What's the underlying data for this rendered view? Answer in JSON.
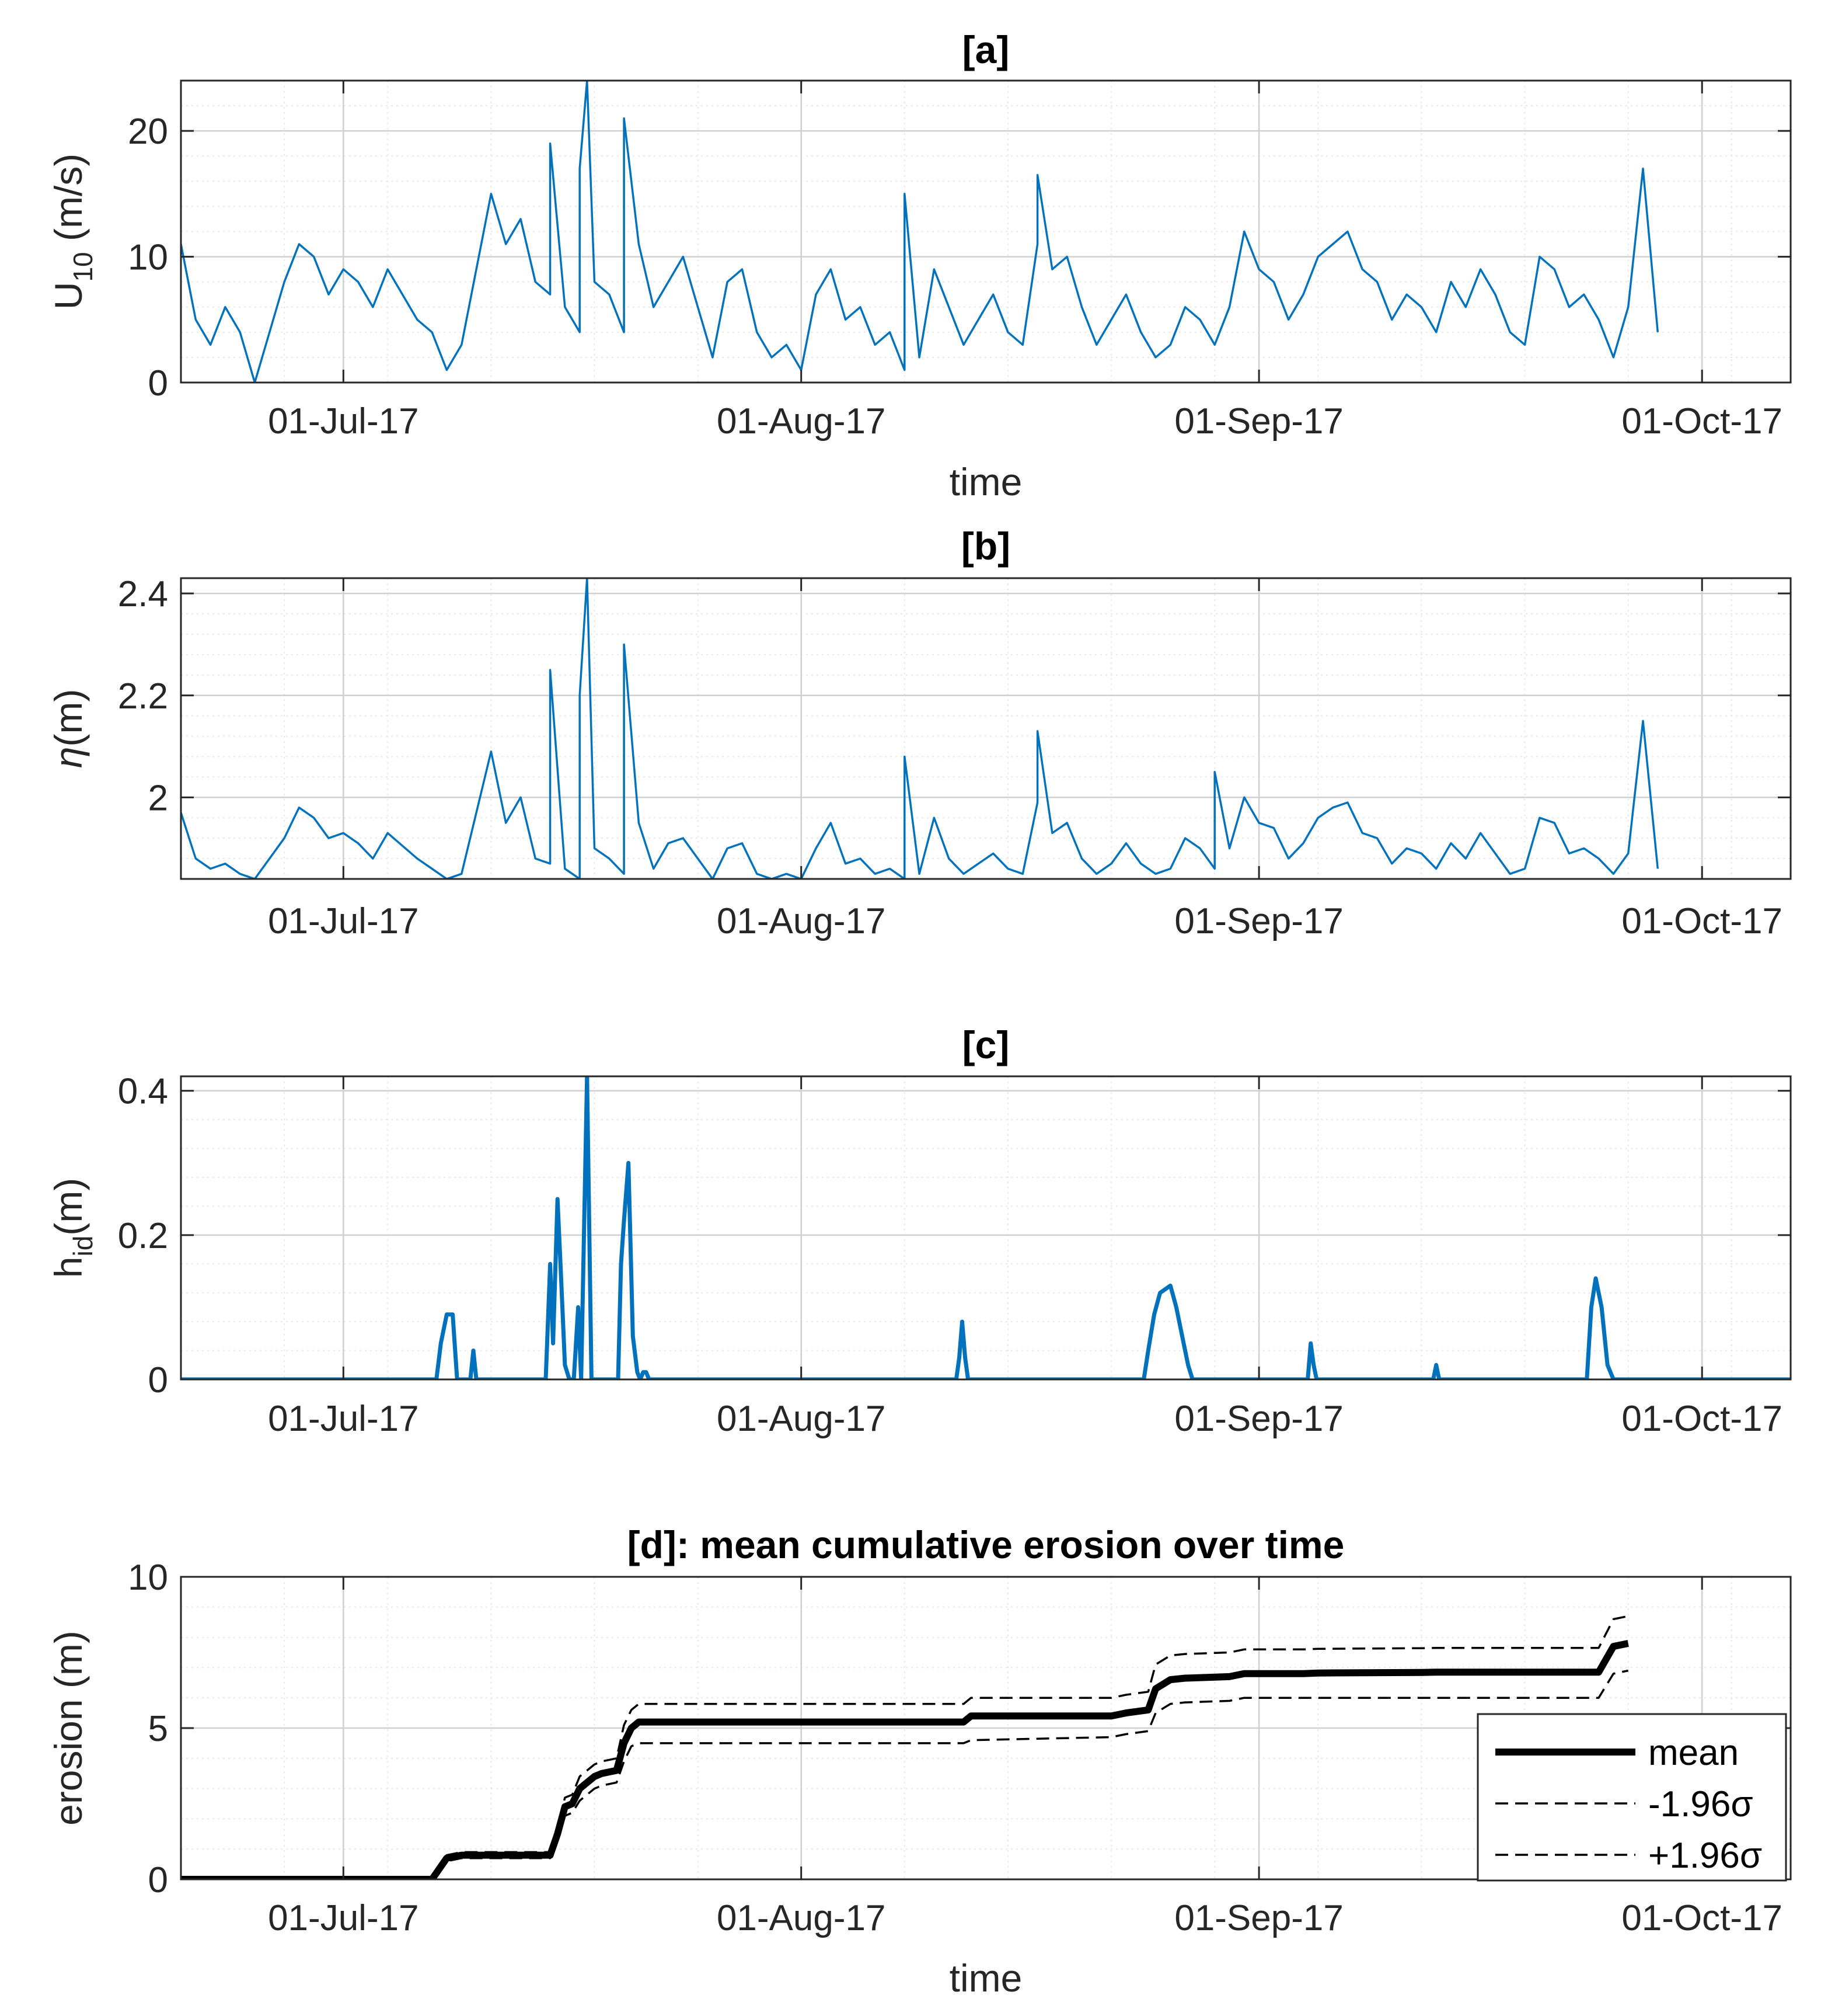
{
  "colors": {
    "series": "#0072bd",
    "axis": "#262626",
    "grid_major": "#d0d0d0",
    "grid_minor": "#e8e8e8",
    "band": "#000000"
  },
  "chart_data": [
    {
      "id": "a",
      "type": "line",
      "title": "[a]",
      "xlabel": "time",
      "ylabel_main": "U",
      "ylabel_sub": "10",
      "ylabel_tail": " (m/s)",
      "xlim": [
        -11,
        98
      ],
      "ylim": [
        0,
        24
      ],
      "xticks": [
        0,
        31,
        62,
        92
      ],
      "xtick_labels": [
        "01-Jul-17",
        "01-Aug-17",
        "01-Sep-17",
        "01-Oct-17"
      ],
      "yticks": [
        0,
        10,
        20
      ],
      "ytick_labels": [
        "0",
        "10",
        "20"
      ],
      "series": [
        {
          "name": "U10",
          "x": [
            -11,
            -10,
            -9,
            -8,
            -7,
            -6,
            -4,
            -3,
            -2,
            -1,
            0,
            1,
            2,
            3,
            5,
            6,
            7,
            8,
            10,
            11,
            12,
            13,
            14,
            15,
            16,
            17,
            18,
            19,
            20,
            21,
            22,
            23,
            24,
            25,
            26,
            27,
            28,
            29,
            30,
            31,
            32,
            33,
            34,
            35,
            36,
            37,
            38,
            39,
            40,
            41,
            42,
            43,
            44,
            45,
            46,
            47,
            48,
            49,
            50,
            51,
            52,
            53,
            54,
            55,
            56,
            57,
            58,
            59,
            60,
            61,
            62,
            63,
            64,
            65,
            66,
            67,
            68,
            69,
            70,
            71,
            72,
            73,
            74,
            75,
            76,
            77,
            78,
            79,
            80,
            81,
            82,
            83,
            84,
            85,
            86,
            87,
            88,
            89
          ],
          "y": [
            11,
            5,
            3,
            6,
            4,
            0,
            8,
            11,
            10,
            7,
            9,
            8,
            6,
            9,
            5,
            4,
            1,
            3,
            15,
            11,
            13,
            8,
            7,
            6,
            4,
            8,
            7,
            4,
            11,
            6,
            8,
            10,
            6,
            2,
            8,
            9,
            4,
            2,
            3,
            1,
            7,
            9,
            5,
            6,
            3,
            4,
            1,
            2,
            9,
            6,
            3,
            5,
            7,
            4,
            3,
            11,
            9,
            10,
            6,
            3,
            5,
            7,
            4,
            2,
            3,
            6,
            5,
            3,
            6,
            12,
            9,
            8,
            5,
            7,
            10,
            11,
            12,
            9,
            8,
            5,
            7,
            6,
            4,
            8,
            6,
            9,
            7,
            4,
            3,
            10,
            9,
            6,
            7,
            5,
            2,
            6,
            17,
            4
          ]
        }
      ],
      "peaks": [
        {
          "x": 14,
          "y": 19
        },
        {
          "x": 16,
          "y": 17
        },
        {
          "x": 16.5,
          "y": 24
        },
        {
          "x": 19,
          "y": 21
        },
        {
          "x": 38,
          "y": 15
        },
        {
          "x": 47,
          "y": 16.5
        }
      ]
    },
    {
      "id": "b",
      "type": "line",
      "title": "[b]",
      "xlabel": "",
      "ylabel_main": "η",
      "ylabel_sub": "",
      "ylabel_tail": "(m)",
      "xlim": [
        -11,
        98
      ],
      "ylim": [
        1.84,
        2.43
      ],
      "xticks": [
        0,
        31,
        62,
        92
      ],
      "xtick_labels": [
        "01-Jul-17",
        "01-Aug-17",
        "01-Sep-17",
        "01-Oct-17"
      ],
      "yticks": [
        2.0,
        2.2,
        2.4
      ],
      "ytick_labels": [
        "2",
        "2.2",
        "2.4"
      ],
      "series": [
        {
          "name": "eta",
          "x": [
            -11,
            -10,
            -9,
            -8,
            -7,
            -6,
            -4,
            -3,
            -2,
            -1,
            0,
            1,
            2,
            3,
            5,
            6,
            7,
            8,
            10,
            11,
            12,
            13,
            14,
            15,
            16,
            17,
            18,
            19,
            20,
            21,
            22,
            23,
            24,
            25,
            26,
            27,
            28,
            29,
            30,
            31,
            32,
            33,
            34,
            35,
            36,
            37,
            38,
            39,
            40,
            41,
            42,
            43,
            44,
            45,
            46,
            47,
            48,
            49,
            50,
            51,
            52,
            53,
            54,
            55,
            56,
            57,
            58,
            59,
            60,
            61,
            62,
            63,
            64,
            65,
            66,
            67,
            68,
            69,
            70,
            71,
            72,
            73,
            74,
            75,
            76,
            77,
            78,
            79,
            80,
            81,
            82,
            83,
            84,
            85,
            86,
            87,
            88,
            89
          ],
          "y": [
            1.97,
            1.88,
            1.86,
            1.87,
            1.85,
            1.84,
            1.92,
            1.98,
            1.96,
            1.92,
            1.93,
            1.91,
            1.88,
            1.93,
            1.88,
            1.86,
            1.84,
            1.85,
            2.09,
            1.95,
            2.0,
            1.88,
            1.87,
            1.86,
            1.84,
            1.9,
            1.88,
            1.85,
            1.95,
            1.86,
            1.91,
            1.92,
            1.88,
            1.84,
            1.9,
            1.91,
            1.85,
            1.84,
            1.85,
            1.84,
            1.9,
            1.95,
            1.87,
            1.88,
            1.85,
            1.86,
            1.84,
            1.85,
            1.96,
            1.88,
            1.85,
            1.87,
            1.89,
            1.86,
            1.85,
            1.99,
            1.93,
            1.95,
            1.88,
            1.85,
            1.87,
            1.91,
            1.87,
            1.85,
            1.86,
            1.92,
            1.9,
            1.86,
            1.9,
            2.0,
            1.95,
            1.94,
            1.88,
            1.91,
            1.96,
            1.98,
            1.99,
            1.93,
            1.92,
            1.87,
            1.9,
            1.89,
            1.86,
            1.91,
            1.88,
            1.93,
            1.89,
            1.85,
            1.86,
            1.96,
            1.95,
            1.89,
            1.9,
            1.88,
            1.85,
            1.89,
            2.15,
            1.86
          ]
        }
      ],
      "peaks": [
        {
          "x": 14,
          "y": 2.25
        },
        {
          "x": 16,
          "y": 2.2
        },
        {
          "x": 16.5,
          "y": 2.43
        },
        {
          "x": 19,
          "y": 2.3
        },
        {
          "x": 38,
          "y": 2.08
        },
        {
          "x": 47,
          "y": 2.13
        },
        {
          "x": 59,
          "y": 2.05
        }
      ]
    },
    {
      "id": "c",
      "type": "line",
      "title": "[c]",
      "xlabel": "",
      "ylabel_main": "h",
      "ylabel_sub": "id",
      "ylabel_tail": "(m)",
      "xlim": [
        -11,
        98
      ],
      "ylim": [
        0,
        0.42
      ],
      "xticks": [
        0,
        31,
        62,
        92
      ],
      "xtick_labels": [
        "01-Jul-17",
        "01-Aug-17",
        "01-Sep-17",
        "01-Oct-17"
      ],
      "yticks": [
        0,
        0.2,
        0.4
      ],
      "ytick_labels": [
        "0",
        "0.2",
        "0.4"
      ],
      "series": [
        {
          "name": "h_id",
          "x": [
            -11,
            6.3,
            6.6,
            7.0,
            7.4,
            7.7,
            8.6,
            8.8,
            9.0,
            13.7,
            14.0,
            14.2,
            14.5,
            14.7,
            15.0,
            15.3,
            15.6,
            15.9,
            16.1,
            16.5,
            16.8,
            17.0,
            18.6,
            18.8,
            19.0,
            19.3,
            19.6,
            19.9,
            20.1,
            20.3,
            20.5,
            20.7,
            41.5,
            41.7,
            41.9,
            42.1,
            42.3,
            42.5,
            42.7,
            54.2,
            54.5,
            54.9,
            55.3,
            56.0,
            56.4,
            56.8,
            57.2,
            57.5,
            65.3,
            65.5,
            65.7,
            65.9,
            73.8,
            74.0,
            74.2,
            84.2,
            84.5,
            84.8,
            85.2,
            85.6,
            86.0,
            98
          ],
          "y": [
            0,
            0,
            0.05,
            0.09,
            0.09,
            0,
            0,
            0.04,
            0,
            0,
            0.16,
            0.05,
            0.25,
            0.16,
            0.02,
            0,
            0,
            0.1,
            0,
            0.42,
            0,
            0,
            0,
            0.16,
            0.22,
            0.3,
            0.06,
            0.01,
            0,
            0.01,
            0.01,
            0,
            0,
            0.03,
            0.08,
            0.03,
            0,
            0,
            0,
            0,
            0.04,
            0.09,
            0.12,
            0.13,
            0.1,
            0.06,
            0.02,
            0,
            0,
            0.05,
            0.02,
            0,
            0,
            0.02,
            0,
            0,
            0.1,
            0.14,
            0.1,
            0.02,
            0,
            0
          ]
        }
      ]
    },
    {
      "id": "d",
      "type": "line",
      "title": "[d]: mean cumulative erosion over time",
      "xlabel": "time",
      "ylabel_main": "erosion (m)",
      "ylabel_sub": "",
      "ylabel_tail": "",
      "xlim": [
        -11,
        98
      ],
      "ylim": [
        0,
        10
      ],
      "xticks": [
        0,
        31,
        62,
        92
      ],
      "xtick_labels": [
        "01-Jul-17",
        "01-Aug-17",
        "01-Sep-17",
        "01-Oct-17"
      ],
      "yticks": [
        0,
        5,
        10
      ],
      "ytick_labels": [
        "0",
        "5",
        "10"
      ],
      "series": [
        {
          "name": "mean",
          "x": [
            -11,
            6,
            7,
            8,
            14,
            14.5,
            15,
            15.5,
            16,
            17,
            17.5,
            18.5,
            19,
            19.5,
            20,
            42,
            42.5,
            52,
            53,
            54.5,
            55,
            56,
            57,
            60,
            61,
            65,
            66,
            73,
            74,
            85,
            86,
            87
          ],
          "y": [
            0,
            0,
            0.7,
            0.8,
            0.8,
            1.5,
            2.4,
            2.5,
            3.0,
            3.4,
            3.5,
            3.6,
            4.5,
            5.0,
            5.2,
            5.2,
            5.4,
            5.4,
            5.5,
            5.6,
            6.3,
            6.6,
            6.65,
            6.7,
            6.8,
            6.8,
            6.82,
            6.84,
            6.85,
            6.85,
            7.7,
            7.8
          ],
          "style": "solid-thick"
        },
        {
          "name": "-1.96σ",
          "x": [
            -11,
            6,
            7,
            8,
            14,
            14.5,
            15,
            15.5,
            16,
            17,
            17.5,
            18.5,
            19,
            19.5,
            20,
            42,
            42.5,
            52,
            53,
            54.5,
            55,
            56,
            57,
            60,
            61,
            65,
            66,
            73,
            74,
            85,
            86,
            87
          ],
          "y": [
            0,
            0,
            0.6,
            0.7,
            0.7,
            1.3,
            2.1,
            2.2,
            2.6,
            3.0,
            3.1,
            3.2,
            3.9,
            4.4,
            4.5,
            4.5,
            4.6,
            4.7,
            4.8,
            4.9,
            5.5,
            5.8,
            5.85,
            5.9,
            6.0,
            6.0,
            6.0,
            6.0,
            6.0,
            6.0,
            6.8,
            6.9
          ],
          "style": "dashed"
        },
        {
          "name": "+1.96σ",
          "x": [
            -11,
            6,
            7,
            8,
            14,
            14.5,
            15,
            15.5,
            16,
            17,
            17.5,
            18.5,
            19,
            19.5,
            20,
            42,
            42.5,
            52,
            53,
            54.5,
            55,
            56,
            57,
            60,
            61,
            65,
            66,
            73,
            74,
            85,
            86,
            87
          ],
          "y": [
            0,
            0,
            0.8,
            0.9,
            0.9,
            1.7,
            2.7,
            2.8,
            3.4,
            3.8,
            3.9,
            4.0,
            5.1,
            5.6,
            5.8,
            5.8,
            6.0,
            6.0,
            6.1,
            6.2,
            7.1,
            7.4,
            7.45,
            7.5,
            7.6,
            7.6,
            7.62,
            7.64,
            7.65,
            7.65,
            8.6,
            8.7
          ],
          "style": "dashed"
        }
      ],
      "legend": {
        "position": "bottom-right",
        "entries": [
          {
            "label": "mean",
            "style": "solid-thick"
          },
          {
            "label": "-1.96σ",
            "style": "dashed"
          },
          {
            "label": "+1.96σ",
            "style": "dashed"
          }
        ]
      }
    }
  ]
}
